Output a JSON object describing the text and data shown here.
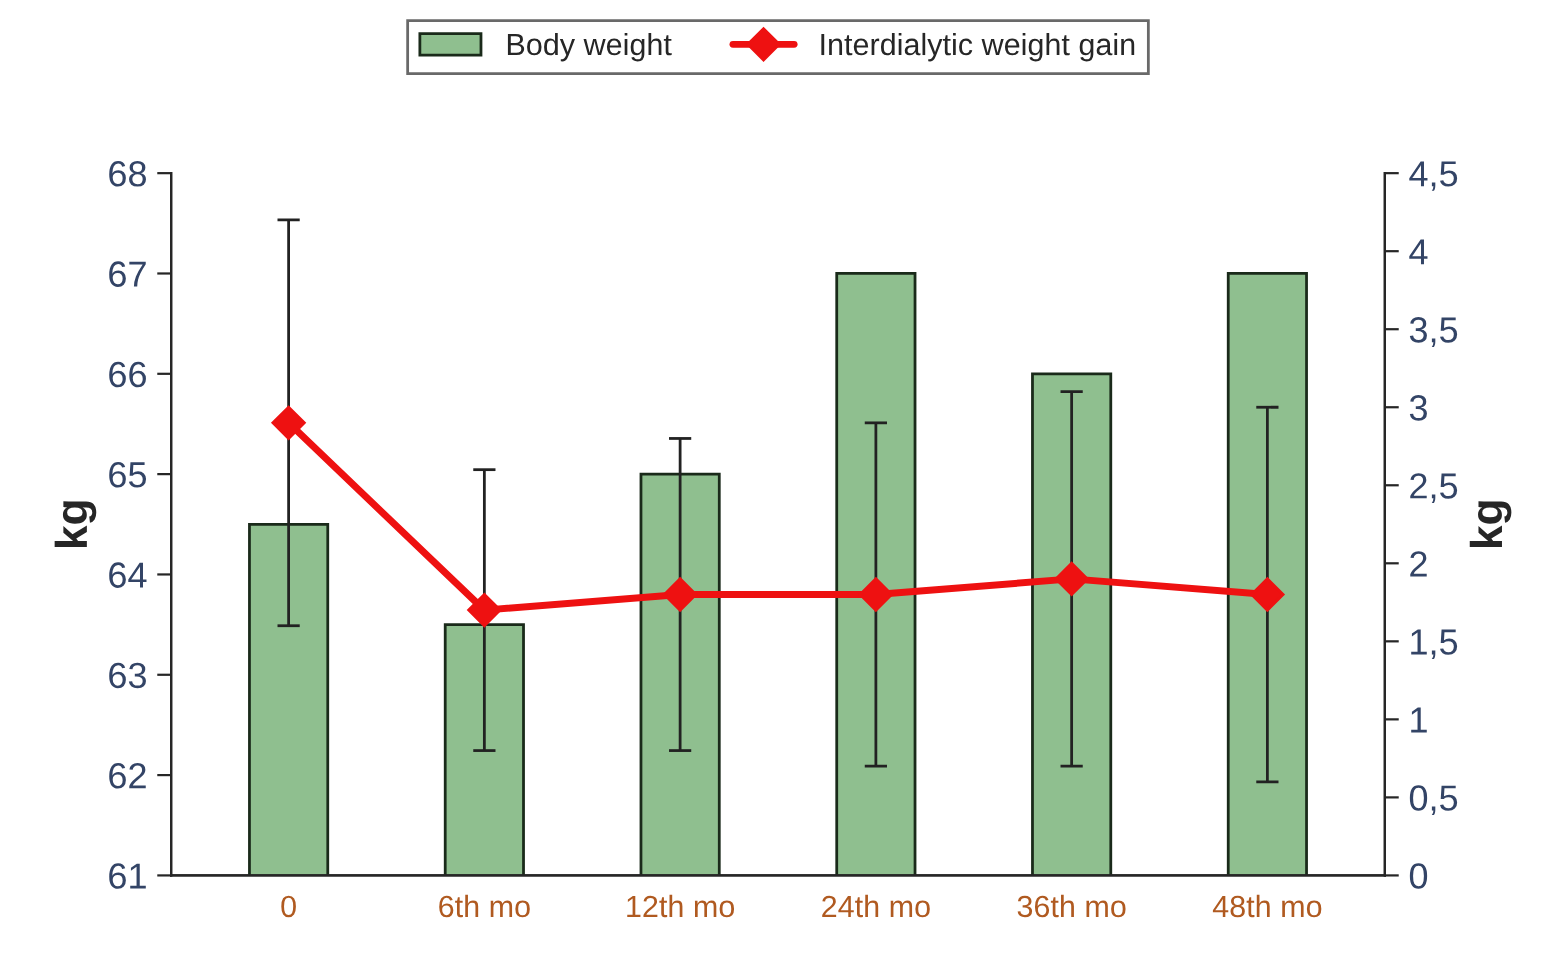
{
  "chart_data": {
    "type": "bar",
    "categories": [
      "0",
      "6th mo",
      "12th mo",
      "24th mo",
      "36th mo",
      "48th mo"
    ],
    "ylabel": "kg",
    "y2label": "kg",
    "ylim": [
      61,
      68
    ],
    "yticks": [
      61,
      62,
      63,
      64,
      65,
      66,
      67,
      68
    ],
    "y2lim": [
      0,
      4.5
    ],
    "y2ticks": [
      0,
      {
        "value": 0.5,
        "label": "0,5"
      },
      1,
      {
        "value": 1.5,
        "label": "1,5"
      },
      2,
      {
        "value": 2.5,
        "label": "2,5"
      },
      3,
      {
        "value": 3.5,
        "label": "3,5"
      },
      4,
      {
        "value": 4.5,
        "label": "4,5"
      }
    ],
    "series": [
      {
        "name": "Body weight",
        "color": "#8fbf8f",
        "values": [
          64.5,
          63.5,
          65,
          67,
          66,
          67
        ]
      },
      {
        "name": "Interdialytic weight gain",
        "type": "line",
        "axis": "y2",
        "color": "#ee1111",
        "marker": "diamond",
        "values": [
          2.9,
          1.7,
          1.8,
          1.8,
          1.9,
          1.8
        ],
        "errors": [
          1.3,
          0.9,
          1.0,
          1.1,
          1.2,
          1.2
        ]
      }
    ],
    "grid": false,
    "legend": "top"
  }
}
